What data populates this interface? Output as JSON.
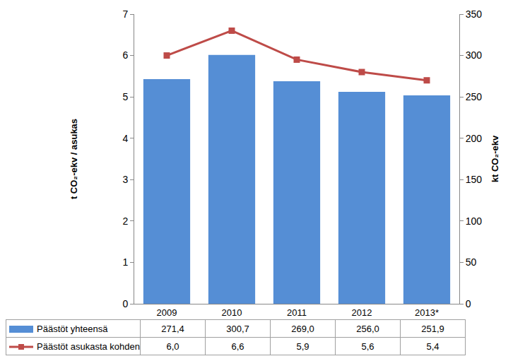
{
  "chart_data": {
    "type": "bar",
    "categories": [
      "2009",
      "2010",
      "2011",
      "2012",
      "2013*"
    ],
    "series": [
      {
        "name": "Päästöt yhteensä",
        "type": "bar",
        "color": "#558ED5",
        "axis": "y2",
        "values": [
          271.4,
          300.7,
          269.0,
          256.0,
          251.9
        ],
        "value_labels": [
          "271,4",
          "300,7",
          "269,0",
          "256,0",
          "251,9"
        ]
      },
      {
        "name": "Päästöt asukasta kohden",
        "type": "line",
        "color": "#BE4B48",
        "marker": "square",
        "line_style": "solid",
        "values": [
          6.0,
          6.6,
          5.9,
          5.6,
          5.4
        ],
        "value_labels": [
          "6,0",
          "6,6",
          "5,9",
          "5,6",
          "5,4"
        ]
      }
    ],
    "ylabel": "t CO₂-ekv / asukas",
    "y2label": "kt CO₂-ekv",
    "ylim": [
      0,
      7
    ],
    "yticks": [
      0,
      1,
      2,
      3,
      4,
      5,
      6,
      7
    ],
    "y2lim": [
      0,
      350
    ],
    "y2ticks": [
      0,
      50,
      100,
      150,
      200,
      250,
      300,
      350
    ],
    "grid": false,
    "data_labels": true
  }
}
